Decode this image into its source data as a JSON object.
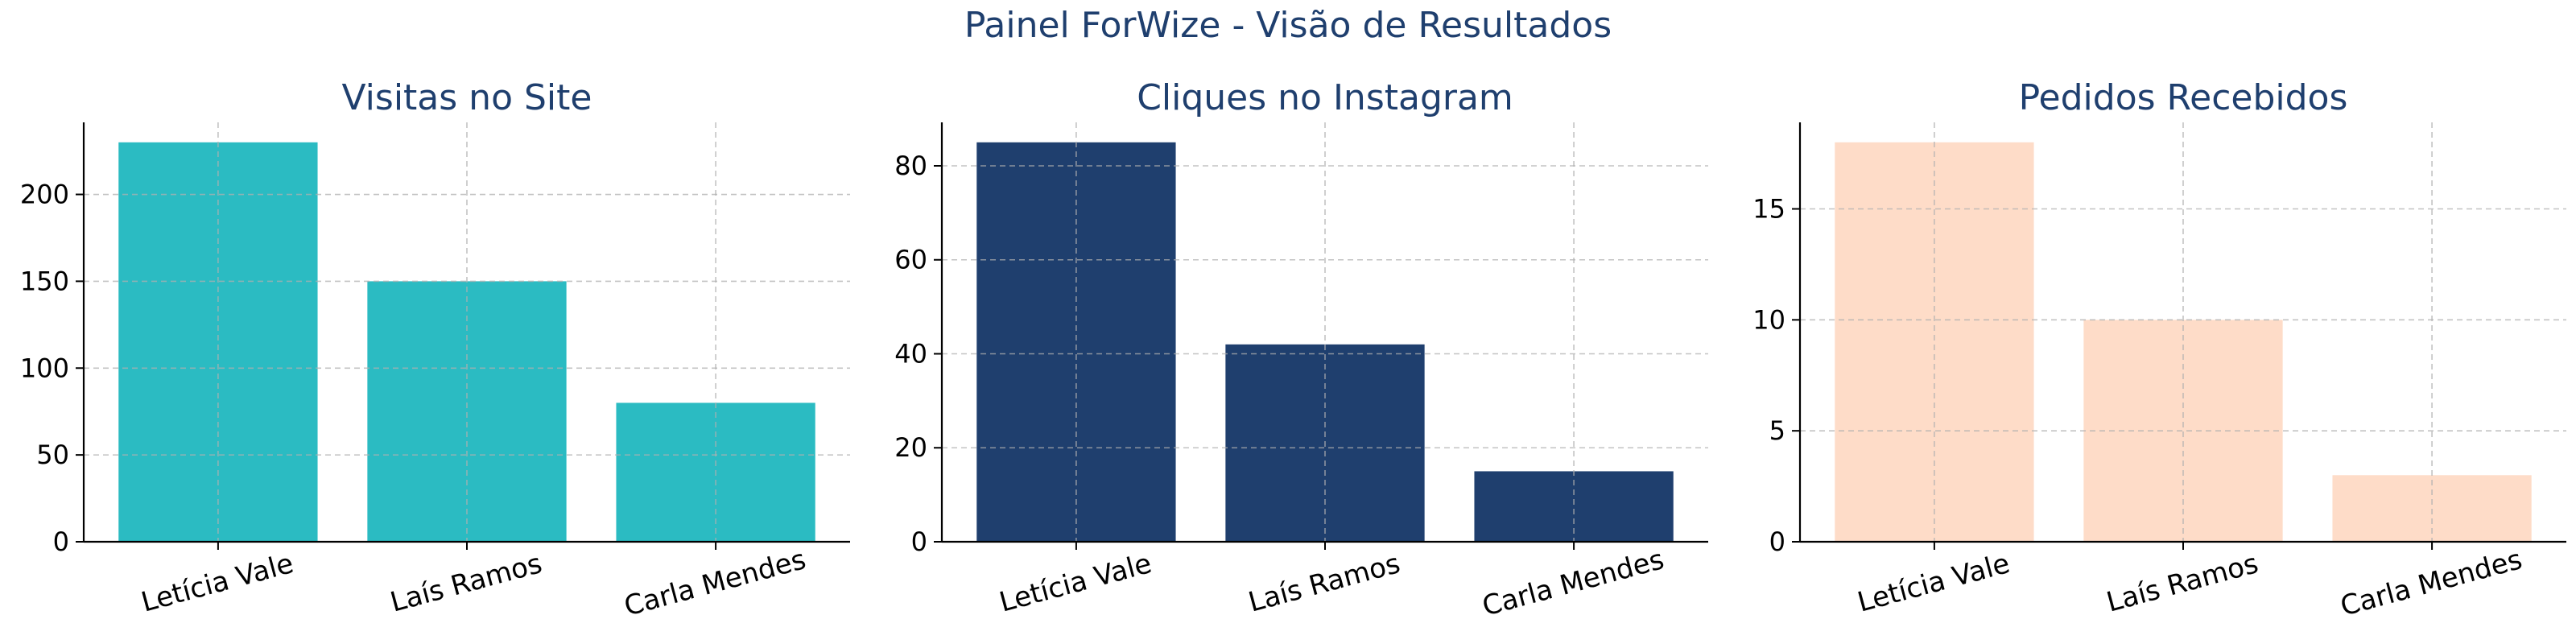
{
  "suptitle": "Painel ForWize - Visão de Resultados",
  "chart_data": [
    {
      "type": "bar",
      "title": "Visitas no Site",
      "categories": [
        "Letícia Vale",
        "Laís Ramos",
        "Carla Mendes"
      ],
      "values": [
        230,
        150,
        80
      ],
      "ylim": [
        0,
        241.5
      ],
      "yticks": [
        0,
        50,
        100,
        150,
        200
      ],
      "color": "#2bbbc2",
      "grid": true
    },
    {
      "type": "bar",
      "title": "Cliques no Instagram",
      "categories": [
        "Letícia Vale",
        "Laís Ramos",
        "Carla Mendes"
      ],
      "values": [
        85,
        42,
        15
      ],
      "ylim": [
        0,
        89.25
      ],
      "yticks": [
        0,
        20,
        40,
        60,
        80
      ],
      "color": "#1f3f6e",
      "grid": true
    },
    {
      "type": "bar",
      "title": "Pedidos Recebidos",
      "categories": [
        "Letícia Vale",
        "Laís Ramos",
        "Carla Mendes"
      ],
      "values": [
        18,
        10,
        3
      ],
      "ylim": [
        0,
        18.9
      ],
      "yticks": [
        0,
        5,
        10,
        15
      ],
      "color": "#fedcc8",
      "grid": true
    }
  ]
}
